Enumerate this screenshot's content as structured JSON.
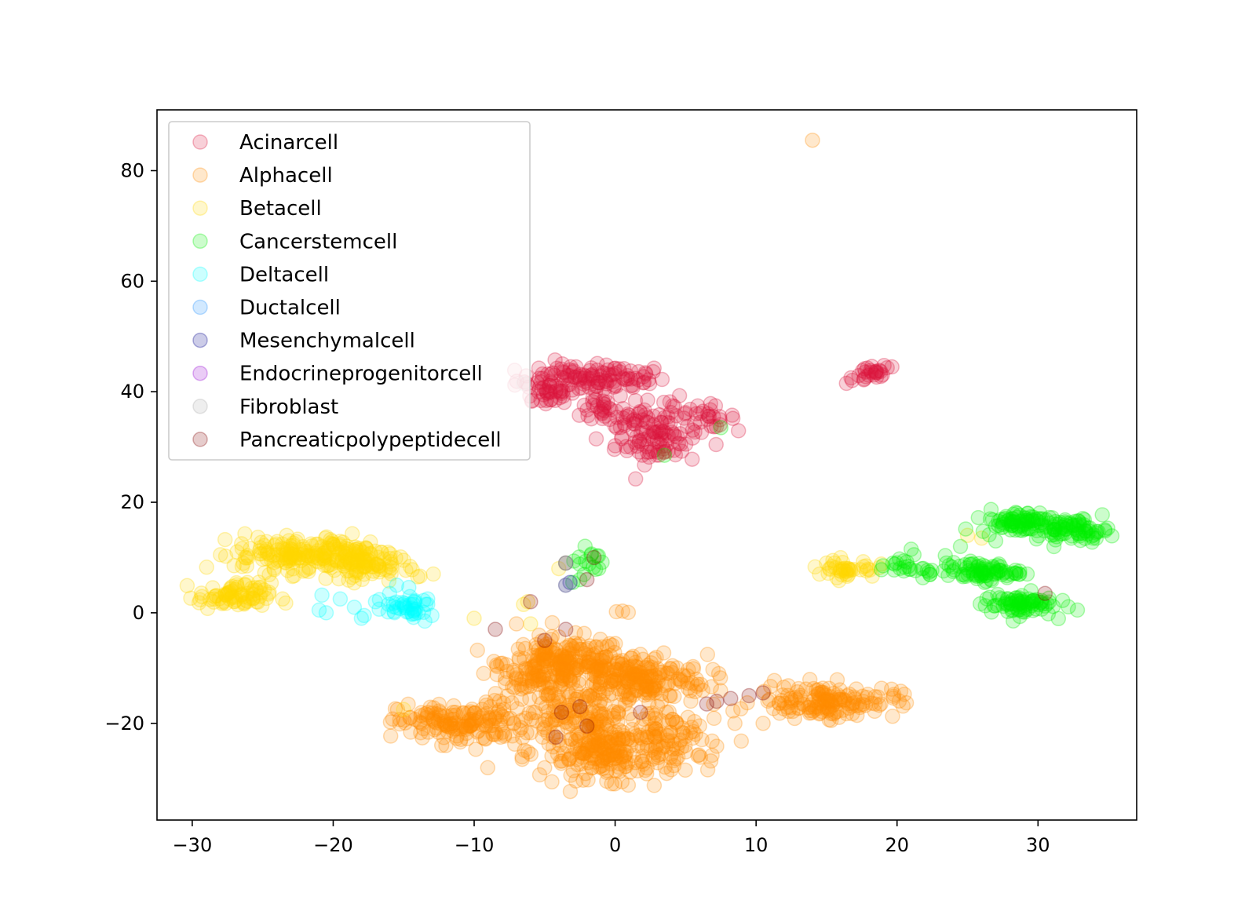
{
  "chart_data": {
    "type": "scatter",
    "title": "",
    "xlabel": "",
    "ylabel": "",
    "xlim": [
      -32.5,
      37
    ],
    "ylim": [
      -37.5,
      91
    ],
    "xticks": [
      -30,
      -20,
      -10,
      0,
      10,
      20,
      30
    ],
    "yticks": [
      -20,
      0,
      20,
      40,
      60,
      80
    ],
    "xtick_labels": [
      "−30",
      "−20",
      "−10",
      "0",
      "10",
      "20",
      "30"
    ],
    "ytick_labels": [
      "−20",
      "0",
      "20",
      "40",
      "60",
      "80"
    ],
    "grid": false,
    "legend_position": "upper-left",
    "point_alpha": 0.2,
    "series": [
      {
        "name": "Acinarcell",
        "color": "#dc143c",
        "clusters": [
          {
            "cx": -3,
            "cy": 42,
            "sx": 2.0,
            "sy": 1.5,
            "n": 90
          },
          {
            "cx": 0.5,
            "cy": 42.5,
            "sx": 1.5,
            "sy": 1.2,
            "n": 40
          },
          {
            "cx": -5,
            "cy": 39.5,
            "sx": 1.0,
            "sy": 1.0,
            "n": 20
          },
          {
            "cx": -0.8,
            "cy": 37,
            "sx": 0.8,
            "sy": 1.5,
            "n": 25
          },
          {
            "cx": 1.5,
            "cy": 35,
            "sx": 1.0,
            "sy": 1.5,
            "n": 35
          },
          {
            "cx": 3,
            "cy": 31,
            "sx": 1.5,
            "sy": 2.0,
            "n": 70
          },
          {
            "cx": 4,
            "cy": 36,
            "sx": 0.6,
            "sy": 1.5,
            "n": 15
          },
          {
            "cx": 6.5,
            "cy": 35.5,
            "sx": 1.0,
            "sy": 1.0,
            "n": 25
          },
          {
            "cx": 18,
            "cy": 43,
            "sx": 0.8,
            "sy": 0.8,
            "n": 25
          },
          {
            "cx": 19.5,
            "cy": 44.5,
            "sx": 0.3,
            "sy": 0.3,
            "n": 3
          }
        ]
      },
      {
        "name": "Alphacell",
        "color": "#ff8c00",
        "clusters": [
          {
            "cx": -3.5,
            "cy": -9,
            "sx": 2.2,
            "sy": 2.2,
            "n": 200
          },
          {
            "cx": 1.5,
            "cy": -12,
            "sx": 2.5,
            "sy": 2.2,
            "n": 200
          },
          {
            "cx": -6.5,
            "cy": -12,
            "sx": 1.5,
            "sy": 1.5,
            "n": 40
          },
          {
            "cx": -11,
            "cy": -20,
            "sx": 2.2,
            "sy": 1.8,
            "n": 150
          },
          {
            "cx": -2.5,
            "cy": -19,
            "sx": 3.0,
            "sy": 2.5,
            "n": 150
          },
          {
            "cx": 0,
            "cy": -25,
            "sx": 2.5,
            "sy": 2.5,
            "n": 200
          },
          {
            "cx": 4.5,
            "cy": -22,
            "sx": 1.5,
            "sy": 3.0,
            "n": 40
          },
          {
            "cx": 15,
            "cy": -16,
            "sx": 2.5,
            "sy": 1.5,
            "n": 150
          },
          {
            "cx": 0.6,
            "cy": 0.5,
            "sx": 0.2,
            "sy": 0.2,
            "n": 3
          },
          {
            "cx": -2.0,
            "cy": -28,
            "sx": 3.0,
            "sy": 1.5,
            "n": 25
          }
        ],
        "points": [
          [
            14,
            85.5
          ],
          [
            -7,
            -2
          ],
          [
            -5,
            -6
          ],
          [
            10.5,
            -20
          ],
          [
            8.5,
            -20
          ]
        ]
      },
      {
        "name": "Betacell",
        "color": "#ffd700",
        "clusters": [
          {
            "cx": -27,
            "cy": 3,
            "sx": 1.3,
            "sy": 1.2,
            "n": 80
          },
          {
            "cx": -24,
            "cy": 10.5,
            "sx": 1.5,
            "sy": 1.5,
            "n": 80
          },
          {
            "cx": -19.5,
            "cy": 10.5,
            "sx": 2.0,
            "sy": 1.8,
            "n": 150
          },
          {
            "cx": -17,
            "cy": 8,
            "sx": 1.5,
            "sy": 1.2,
            "n": 40
          },
          {
            "cx": 16.5,
            "cy": 8,
            "sx": 1.0,
            "sy": 0.8,
            "n": 40
          }
        ],
        "points": [
          [
            -28,
            10.5
          ],
          [
            -26.5,
            12.5
          ],
          [
            -15,
            9.5
          ],
          [
            -14,
            6.5
          ],
          [
            -10,
            -1
          ],
          [
            -6.5,
            1.5
          ],
          [
            -6,
            -2
          ],
          [
            -4,
            8
          ],
          [
            -3.5,
            9
          ],
          [
            -15,
            -17.5
          ],
          [
            14.5,
            7
          ],
          [
            15,
            9
          ],
          [
            25,
            14
          ],
          [
            26,
            13.5
          ],
          [
            -6.2,
            2
          ]
        ]
      },
      {
        "name": "Cancerstemcell",
        "color": "#00ee00",
        "clusters": [
          {
            "cx": 28.5,
            "cy": 16.5,
            "sx": 1.3,
            "sy": 1.0,
            "n": 80
          },
          {
            "cx": 32.5,
            "cy": 15,
            "sx": 1.3,
            "sy": 1.0,
            "n": 80
          },
          {
            "cx": 26,
            "cy": 7.5,
            "sx": 1.3,
            "sy": 0.8,
            "n": 80
          },
          {
            "cx": 28.5,
            "cy": 1.5,
            "sx": 1.3,
            "sy": 1.0,
            "n": 80
          },
          {
            "cx": 20.5,
            "cy": 8.5,
            "sx": 0.8,
            "sy": 0.8,
            "n": 15
          },
          {
            "cx": 22,
            "cy": 7.5,
            "sx": 0.5,
            "sy": 0.5,
            "n": 8
          },
          {
            "cx": -1.8,
            "cy": 9.5,
            "sx": 0.5,
            "sy": 1.2,
            "n": 15
          }
        ],
        "points": [
          [
            21,
            11.5
          ],
          [
            21.2,
            10.5
          ],
          [
            23.5,
            9
          ],
          [
            24.5,
            12
          ],
          [
            19,
            8.5
          ],
          [
            7.5,
            33.5
          ],
          [
            3.5,
            28.5
          ],
          [
            -3,
            5.5
          ],
          [
            -2.5,
            6
          ],
          [
            29.5,
            4
          ],
          [
            27,
            13
          ]
        ]
      },
      {
        "name": "Deltacell",
        "color": "#00ffff",
        "clusters": [
          {
            "cx": -15,
            "cy": 1,
            "sx": 1.0,
            "sy": 1.0,
            "n": 40
          }
        ],
        "points": [
          [
            -20.8,
            3.2
          ],
          [
            -21,
            0.5
          ],
          [
            -19.5,
            2.5
          ],
          [
            -18,
            -1
          ],
          [
            -17.8,
            -0.5
          ],
          [
            -18.5,
            1
          ],
          [
            -13.3,
            2.5
          ],
          [
            -13.5,
            -1.5
          ],
          [
            -13,
            -0.5
          ],
          [
            -16,
            3.5
          ],
          [
            -15.5,
            5
          ],
          [
            -17,
            2
          ],
          [
            -20.5,
            0
          ]
        ]
      },
      {
        "name": "Ductalcell",
        "color": "#1e90ff",
        "clusters": [],
        "points": []
      },
      {
        "name": "Mesenchymalcell",
        "color": "#00008b",
        "clusters": [],
        "points": [
          [
            -3.5,
            9
          ],
          [
            -3.5,
            5
          ],
          [
            -3.2,
            5.5
          ]
        ]
      },
      {
        "name": "Endocrineprogenitorcell",
        "color": "#9400d3",
        "clusters": [],
        "points": []
      },
      {
        "name": "Fibroblast",
        "color": "#a9a9a9",
        "clusters": [],
        "points": [
          [
            -6.5,
            41.5
          ],
          [
            -3.5,
            9
          ],
          [
            -3.5,
            5
          ]
        ]
      },
      {
        "name": "Pancreaticpolypeptidecell",
        "color": "#800000",
        "clusters": [],
        "points": [
          [
            -8.5,
            -3
          ],
          [
            -3.5,
            -3
          ],
          [
            -3.8,
            -18
          ],
          [
            -2.5,
            -17
          ],
          [
            -2,
            -20.5
          ],
          [
            1.8,
            -18
          ],
          [
            -4.2,
            -22.5
          ],
          [
            -5,
            -5
          ],
          [
            6.5,
            -16.5
          ],
          [
            7.2,
            -16
          ],
          [
            8.2,
            -15.5
          ],
          [
            9.5,
            -15
          ],
          [
            10.5,
            -14.5
          ],
          [
            30.5,
            3.5
          ],
          [
            -6,
            2
          ],
          [
            -1.5,
            10
          ],
          [
            -2,
            6
          ]
        ]
      }
    ]
  }
}
